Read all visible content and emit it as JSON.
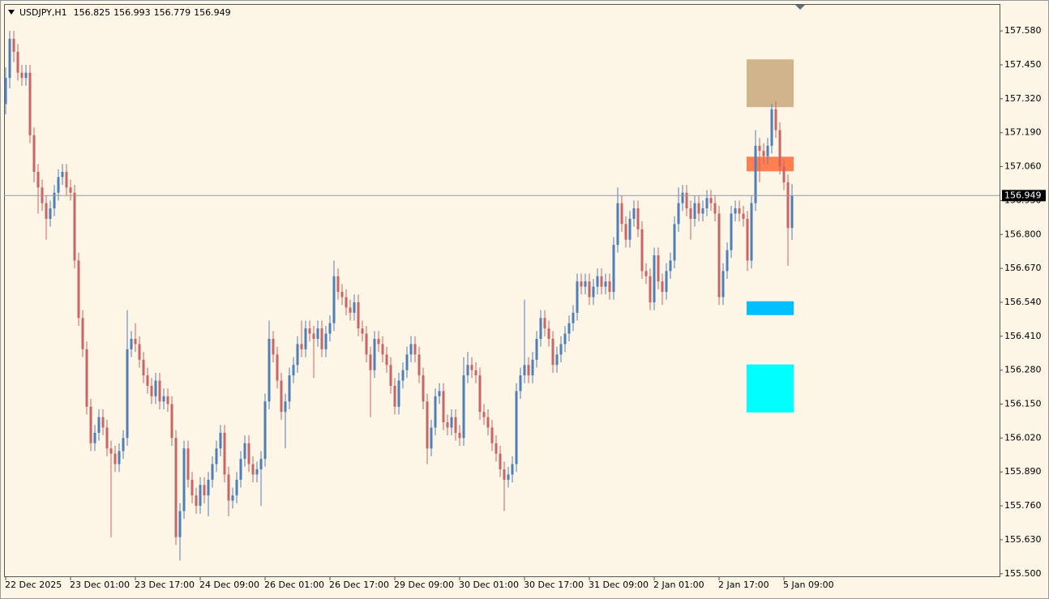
{
  "chart_data": {
    "type": "candlestick",
    "title": "USDJPY,H1",
    "colors": {
      "up": "#4f7fb8",
      "down": "#c96565",
      "background": "#fdf5e6",
      "price_line": "#8d9bab"
    },
    "ylim": [
      155.49,
      157.683
    ],
    "yticks": [
      {
        "value": 157.58,
        "label": "157.580"
      },
      {
        "value": 157.45,
        "label": "157.450"
      },
      {
        "value": 157.32,
        "label": "157.320"
      },
      {
        "value": 157.19,
        "label": "157.190"
      },
      {
        "value": 157.06,
        "label": "157.060"
      },
      {
        "value": 156.93,
        "label": "156.930"
      },
      {
        "value": 156.8,
        "label": "156.800"
      },
      {
        "value": 156.67,
        "label": "156.670"
      },
      {
        "value": 156.54,
        "label": "156.540"
      },
      {
        "value": 156.41,
        "label": "156.410"
      },
      {
        "value": 156.28,
        "label": "156.280"
      },
      {
        "value": 156.15,
        "label": "156.150"
      },
      {
        "value": 156.02,
        "label": "156.020"
      },
      {
        "value": 155.89,
        "label": "155.890"
      },
      {
        "value": 155.76,
        "label": "155.760"
      },
      {
        "value": 155.63,
        "label": "155.630"
      },
      {
        "value": 155.5,
        "label": "155.500"
      }
    ],
    "xticks": [
      {
        "value": 0,
        "label": "22 Dec 2025"
      },
      {
        "value": 16,
        "label": "23 Dec 01:00"
      },
      {
        "value": 32,
        "label": "23 Dec 17:00"
      },
      {
        "value": 48,
        "label": "24 Dec 09:00"
      },
      {
        "value": 64,
        "label": "26 Dec 01:00"
      },
      {
        "value": 80,
        "label": "26 Dec 17:00"
      },
      {
        "value": 96,
        "label": "29 Dec 09:00"
      },
      {
        "value": 112,
        "label": "30 Dec 01:00"
      },
      {
        "value": 128,
        "label": "30 Dec 17:00"
      },
      {
        "value": 144,
        "label": "31 Dec 09:00"
      },
      {
        "value": 160,
        "label": "2 Jan 01:00"
      },
      {
        "value": 176,
        "label": "2 Jan 17:00"
      },
      {
        "value": 192,
        "label": "5 Jan 09:00"
      }
    ],
    "zones": [
      {
        "top": 157.471,
        "bottom": 157.288,
        "color": "#d2b48c"
      },
      {
        "top": 157.098,
        "bottom": 157.042,
        "color": "#ff7f50"
      },
      {
        "top": 156.544,
        "bottom": 156.491,
        "color": "#00bfff"
      },
      {
        "top": 156.302,
        "bottom": 156.118,
        "color": "#00ffff"
      }
    ],
    "ohlc": [
      [
        157.3,
        157.44,
        157.26,
        157.4
      ],
      [
        157.4,
        157.58,
        157.36,
        157.55
      ],
      [
        157.55,
        157.58,
        157.46,
        157.5
      ],
      [
        157.5,
        157.53,
        157.39,
        157.42
      ],
      [
        157.42,
        157.45,
        157.37,
        157.4
      ],
      [
        157.4,
        157.45,
        157.37,
        157.42
      ],
      [
        157.42,
        157.45,
        157.15,
        157.18
      ],
      [
        157.18,
        157.21,
        157.0,
        157.04
      ],
      [
        157.04,
        157.07,
        156.88,
        156.98
      ],
      [
        156.98,
        157.01,
        156.89,
        156.92
      ],
      [
        156.92,
        156.95,
        156.78,
        156.86
      ],
      [
        156.86,
        156.93,
        156.83,
        156.9
      ],
      [
        156.9,
        156.99,
        156.87,
        156.96
      ],
      [
        156.96,
        157.05,
        156.93,
        157.02
      ],
      [
        157.02,
        157.07,
        156.99,
        157.04
      ],
      [
        157.04,
        157.07,
        156.95,
        156.98
      ],
      [
        156.98,
        157.01,
        156.93,
        156.96
      ],
      [
        156.96,
        156.99,
        156.67,
        156.7
      ],
      [
        156.7,
        156.73,
        156.45,
        156.48
      ],
      [
        156.48,
        156.51,
        156.33,
        156.36
      ],
      [
        156.36,
        156.39,
        156.11,
        156.14
      ],
      [
        156.14,
        156.17,
        155.97,
        156.0
      ],
      [
        156.0,
        156.07,
        155.97,
        156.04
      ],
      [
        156.04,
        156.13,
        156.01,
        156.1
      ],
      [
        156.1,
        156.13,
        156.03,
        156.06
      ],
      [
        156.06,
        156.09,
        155.95,
        155.98
      ],
      [
        155.98,
        156.01,
        155.64,
        155.96
      ],
      [
        155.96,
        155.99,
        155.89,
        155.92
      ],
      [
        155.92,
        156.0,
        155.89,
        155.97
      ],
      [
        155.97,
        156.05,
        155.94,
        156.02
      ],
      [
        156.02,
        156.51,
        155.99,
        156.36
      ],
      [
        156.36,
        156.43,
        156.33,
        156.4
      ],
      [
        156.4,
        156.46,
        156.35,
        156.38
      ],
      [
        156.38,
        156.41,
        156.29,
        156.32
      ],
      [
        156.32,
        156.35,
        156.23,
        156.26
      ],
      [
        156.26,
        156.29,
        156.19,
        156.22
      ],
      [
        156.22,
        156.25,
        156.15,
        156.18
      ],
      [
        156.18,
        156.27,
        156.15,
        156.24
      ],
      [
        156.24,
        156.27,
        156.13,
        156.16
      ],
      [
        156.16,
        156.21,
        156.13,
        156.18
      ],
      [
        156.18,
        156.21,
        156.12,
        156.15
      ],
      [
        156.15,
        156.18,
        155.99,
        156.02
      ],
      [
        156.02,
        156.05,
        155.61,
        155.64
      ],
      [
        155.64,
        155.77,
        155.55,
        155.74
      ],
      [
        155.74,
        156.01,
        155.71,
        155.98
      ],
      [
        155.98,
        156.01,
        155.83,
        155.86
      ],
      [
        155.86,
        155.89,
        155.77,
        155.8
      ],
      [
        155.8,
        155.83,
        155.73,
        155.76
      ],
      [
        155.76,
        155.87,
        155.73,
        155.84
      ],
      [
        155.84,
        155.87,
        155.77,
        155.8
      ],
      [
        155.8,
        155.89,
        155.72,
        155.86
      ],
      [
        155.86,
        155.95,
        155.83,
        155.92
      ],
      [
        155.92,
        156.01,
        155.89,
        155.98
      ],
      [
        155.98,
        156.07,
        155.95,
        156.04
      ],
      [
        156.04,
        156.07,
        155.85,
        155.88
      ],
      [
        155.88,
        155.91,
        155.72,
        155.78
      ],
      [
        155.78,
        155.83,
        155.75,
        155.8
      ],
      [
        155.8,
        155.89,
        155.77,
        155.86
      ],
      [
        155.86,
        155.97,
        155.83,
        155.94
      ],
      [
        155.94,
        156.03,
        155.91,
        156.0
      ],
      [
        156.0,
        156.03,
        155.89,
        155.92
      ],
      [
        155.92,
        155.95,
        155.85,
        155.88
      ],
      [
        155.88,
        155.93,
        155.85,
        155.9
      ],
      [
        155.9,
        155.97,
        155.76,
        155.94
      ],
      [
        155.94,
        156.19,
        155.91,
        156.16
      ],
      [
        156.16,
        156.47,
        156.13,
        156.4
      ],
      [
        156.4,
        156.43,
        156.31,
        156.34
      ],
      [
        156.34,
        156.37,
        156.21,
        156.24
      ],
      [
        156.24,
        156.27,
        156.09,
        156.12
      ],
      [
        156.12,
        156.19,
        155.98,
        156.16
      ],
      [
        156.16,
        156.29,
        156.13,
        156.26
      ],
      [
        156.26,
        156.33,
        156.23,
        156.3
      ],
      [
        156.3,
        156.41,
        156.27,
        156.38
      ],
      [
        156.38,
        156.47,
        156.33,
        156.36
      ],
      [
        156.36,
        156.47,
        156.33,
        156.44
      ],
      [
        156.44,
        156.47,
        156.39,
        156.42
      ],
      [
        156.42,
        156.45,
        156.25,
        156.4
      ],
      [
        156.4,
        156.47,
        156.37,
        156.44
      ],
      [
        156.44,
        156.47,
        156.33,
        156.36
      ],
      [
        156.36,
        156.45,
        156.33,
        156.42
      ],
      [
        156.42,
        156.49,
        156.39,
        156.46
      ],
      [
        156.46,
        156.7,
        156.43,
        156.64
      ],
      [
        156.64,
        156.67,
        156.55,
        156.58
      ],
      [
        156.58,
        156.61,
        156.53,
        156.56
      ],
      [
        156.56,
        156.59,
        156.49,
        156.52
      ],
      [
        156.52,
        156.55,
        156.47,
        156.5
      ],
      [
        156.5,
        156.57,
        156.47,
        156.54
      ],
      [
        156.54,
        156.57,
        156.41,
        156.44
      ],
      [
        156.44,
        156.47,
        156.39,
        156.42
      ],
      [
        156.42,
        156.45,
        156.31,
        156.34
      ],
      [
        156.34,
        156.37,
        156.1,
        156.28
      ],
      [
        156.28,
        156.43,
        156.25,
        156.4
      ],
      [
        156.4,
        156.43,
        156.35,
        156.38
      ],
      [
        156.38,
        156.41,
        156.31,
        156.34
      ],
      [
        156.34,
        156.37,
        156.27,
        156.3
      ],
      [
        156.3,
        156.33,
        156.19,
        156.22
      ],
      [
        156.22,
        156.25,
        156.11,
        156.14
      ],
      [
        156.14,
        156.27,
        156.11,
        156.24
      ],
      [
        156.24,
        156.31,
        156.21,
        156.28
      ],
      [
        156.28,
        156.37,
        156.25,
        156.34
      ],
      [
        156.34,
        156.41,
        156.31,
        156.38
      ],
      [
        156.38,
        156.41,
        156.31,
        156.34
      ],
      [
        156.34,
        156.37,
        156.23,
        156.26
      ],
      [
        156.26,
        156.29,
        156.13,
        156.16
      ],
      [
        156.16,
        156.19,
        155.92,
        155.98
      ],
      [
        155.98,
        156.09,
        155.95,
        156.06
      ],
      [
        156.06,
        156.21,
        156.03,
        156.18
      ],
      [
        156.18,
        156.23,
        156.15,
        156.2
      ],
      [
        156.2,
        156.23,
        156.05,
        156.08
      ],
      [
        156.08,
        156.11,
        156.03,
        156.06
      ],
      [
        156.06,
        156.13,
        156.03,
        156.1
      ],
      [
        156.1,
        156.13,
        156.01,
        156.04
      ],
      [
        156.04,
        156.07,
        155.99,
        156.02
      ],
      [
        156.02,
        156.33,
        155.99,
        156.26
      ],
      [
        156.26,
        156.35,
        156.23,
        156.3
      ],
      [
        156.3,
        156.33,
        156.25,
        156.28
      ],
      [
        156.28,
        156.31,
        156.23,
        156.26
      ],
      [
        156.26,
        156.29,
        156.09,
        156.12
      ],
      [
        156.12,
        156.15,
        156.07,
        156.1
      ],
      [
        156.1,
        156.13,
        156.03,
        156.06
      ],
      [
        156.06,
        156.09,
        155.97,
        156.0
      ],
      [
        156.0,
        156.03,
        155.93,
        155.96
      ],
      [
        155.96,
        155.99,
        155.87,
        155.9
      ],
      [
        155.9,
        155.93,
        155.74,
        155.86
      ],
      [
        155.86,
        155.91,
        155.83,
        155.88
      ],
      [
        155.88,
        155.95,
        155.85,
        155.92
      ],
      [
        155.92,
        156.23,
        155.89,
        156.2
      ],
      [
        156.2,
        156.29,
        156.17,
        156.26
      ],
      [
        156.26,
        156.55,
        156.23,
        156.3
      ],
      [
        156.3,
        156.33,
        156.23,
        156.26
      ],
      [
        156.26,
        156.35,
        156.23,
        156.32
      ],
      [
        156.32,
        156.43,
        156.29,
        156.4
      ],
      [
        156.4,
        156.51,
        156.37,
        156.48
      ],
      [
        156.48,
        156.51,
        156.41,
        156.44
      ],
      [
        156.44,
        156.47,
        156.37,
        156.4
      ],
      [
        156.4,
        156.43,
        156.27,
        156.3
      ],
      [
        156.3,
        156.37,
        156.27,
        156.34
      ],
      [
        156.34,
        156.41,
        156.31,
        156.38
      ],
      [
        156.38,
        156.45,
        156.35,
        156.42
      ],
      [
        156.42,
        156.49,
        156.39,
        156.46
      ],
      [
        156.46,
        156.53,
        156.43,
        156.5
      ],
      [
        156.5,
        156.65,
        156.47,
        156.62
      ],
      [
        156.62,
        156.65,
        156.57,
        156.6
      ],
      [
        156.6,
        156.65,
        156.57,
        156.62
      ],
      [
        156.62,
        156.65,
        156.53,
        156.56
      ],
      [
        156.56,
        156.63,
        156.53,
        156.6
      ],
      [
        156.6,
        156.67,
        156.57,
        156.64
      ],
      [
        156.64,
        156.67,
        156.57,
        156.6
      ],
      [
        156.6,
        156.65,
        156.57,
        156.62
      ],
      [
        156.62,
        156.65,
        156.55,
        156.58
      ],
      [
        156.58,
        156.79,
        156.55,
        156.76
      ],
      [
        156.76,
        156.98,
        156.73,
        156.92
      ],
      [
        156.92,
        156.95,
        156.81,
        156.84
      ],
      [
        156.84,
        156.87,
        156.75,
        156.78
      ],
      [
        156.78,
        156.89,
        156.75,
        156.86
      ],
      [
        156.86,
        156.93,
        156.83,
        156.9
      ],
      [
        156.9,
        156.93,
        156.79,
        156.82
      ],
      [
        156.82,
        156.85,
        156.63,
        156.66
      ],
      [
        156.66,
        156.69,
        156.61,
        156.64
      ],
      [
        156.64,
        156.67,
        156.51,
        156.54
      ],
      [
        156.54,
        156.75,
        156.51,
        156.72
      ],
      [
        156.72,
        156.75,
        156.59,
        156.62
      ],
      [
        156.62,
        156.65,
        156.53,
        156.58
      ],
      [
        156.58,
        156.69,
        156.55,
        156.66
      ],
      [
        156.66,
        156.73,
        156.63,
        156.7
      ],
      [
        156.7,
        156.87,
        156.67,
        156.84
      ],
      [
        156.84,
        156.98,
        156.81,
        156.92
      ],
      [
        156.92,
        156.99,
        156.89,
        156.96
      ],
      [
        156.96,
        156.99,
        156.87,
        156.9
      ],
      [
        156.9,
        156.93,
        156.78,
        156.86
      ],
      [
        156.86,
        156.95,
        156.83,
        156.92
      ],
      [
        156.92,
        156.95,
        156.85,
        156.88
      ],
      [
        156.88,
        156.93,
        156.85,
        156.9
      ],
      [
        156.9,
        156.97,
        156.87,
        156.94
      ],
      [
        156.94,
        156.97,
        156.89,
        156.92
      ],
      [
        156.92,
        156.95,
        156.85,
        156.88
      ],
      [
        156.88,
        156.91,
        156.53,
        156.56
      ],
      [
        156.56,
        156.69,
        156.53,
        156.66
      ],
      [
        156.66,
        156.77,
        156.63,
        156.74
      ],
      [
        156.74,
        156.91,
        156.71,
        156.88
      ],
      [
        156.88,
        156.93,
        156.85,
        156.9
      ],
      [
        156.9,
        156.93,
        156.85,
        156.88
      ],
      [
        156.88,
        156.91,
        156.83,
        156.86
      ],
      [
        156.86,
        156.89,
        156.66,
        156.7
      ],
      [
        156.7,
        156.95,
        156.67,
        156.92
      ],
      [
        156.92,
        157.2,
        156.89,
        157.14
      ],
      [
        157.14,
        157.17,
        157.0,
        157.12
      ],
      [
        157.12,
        157.15,
        157.07,
        157.1
      ],
      [
        157.1,
        157.17,
        157.07,
        157.14
      ],
      [
        157.14,
        157.3,
        157.11,
        157.28
      ],
      [
        157.28,
        157.31,
        157.17,
        157.2
      ],
      [
        157.2,
        157.23,
        157.03,
        157.06
      ],
      [
        157.06,
        157.09,
        156.97,
        157.0
      ],
      [
        157.0,
        157.03,
        156.68,
        156.825
      ],
      [
        156.825,
        156.993,
        156.779,
        156.949
      ]
    ]
  }
}
